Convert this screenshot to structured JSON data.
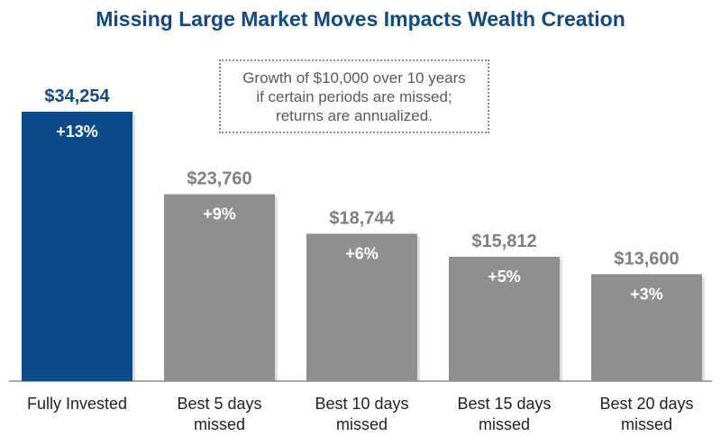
{
  "chart_data": {
    "type": "bar",
    "title": "Missing Large Market Moves Impacts Wealth Creation",
    "annotation": [
      "Growth of $10,000 over 10 years",
      "if certain periods are missed;",
      "returns are annualized."
    ],
    "categories": [
      [
        "Fully Invested"
      ],
      [
        "Best 5 days",
        "missed"
      ],
      [
        "Best 10 days",
        "missed"
      ],
      [
        "Best 15 days",
        "missed"
      ],
      [
        "Best 20 days",
        "missed"
      ]
    ],
    "values": [
      34254,
      23760,
      18744,
      15812,
      13600
    ],
    "value_labels": [
      "$34,254",
      "$23,760",
      "$18,744",
      "$15,812",
      "$13,600"
    ],
    "return_labels": [
      "+13%",
      "+9%",
      "+6%",
      "+5%",
      "+3%"
    ],
    "colors": [
      "#0e4a8a",
      "#8f8f8f",
      "#8f8f8f",
      "#8f8f8f",
      "#8f8f8f"
    ],
    "value_label_colors": [
      "#0e4a8a",
      "#7f7f7f",
      "#7f7f7f",
      "#7f7f7f",
      "#7f7f7f"
    ],
    "baseline_color": "#8c8c8c",
    "ylim": [
      0,
      40000
    ],
    "xlabel": "",
    "ylabel": ""
  }
}
